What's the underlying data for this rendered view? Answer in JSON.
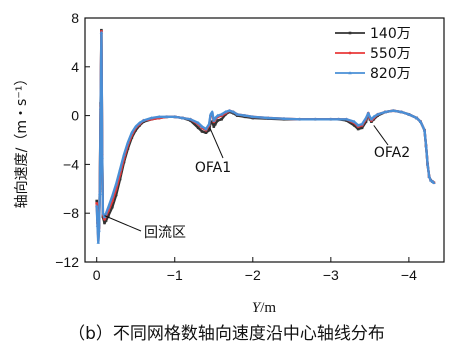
{
  "caption": "（b）不同网格数轴向速度沿中心轴线分布",
  "chart_data": {
    "type": "line",
    "title": "",
    "xlabel": "Y/m",
    "ylabel": "轴向速度/（m・s⁻¹）",
    "xlim": [
      0.15,
      -4.45
    ],
    "ylim": [
      -12,
      8
    ],
    "x_ticks": [
      0,
      -1,
      -2,
      -3,
      -4
    ],
    "x_tick_labels": [
      "0",
      "−1",
      "−2",
      "−3",
      "−4"
    ],
    "y_ticks": [
      8,
      4,
      0,
      -4,
      -8,
      -12
    ],
    "y_tick_labels": [
      "8",
      "4",
      "0",
      "−4",
      "−8",
      "−12"
    ],
    "grid": false,
    "legend_position": "top-right",
    "x": [
      0,
      -0.01,
      -0.02,
      -0.03,
      -0.04,
      -0.05,
      -0.06,
      -0.07,
      -0.08,
      -0.1,
      -0.12,
      -0.15,
      -0.2,
      -0.25,
      -0.3,
      -0.35,
      -0.4,
      -0.45,
      -0.5,
      -0.55,
      -0.6,
      -0.7,
      -0.8,
      -0.9,
      -1.0,
      -1.1,
      -1.2,
      -1.3,
      -1.35,
      -1.4,
      -1.44,
      -1.46,
      -1.48,
      -1.5,
      -1.52,
      -1.55,
      -1.6,
      -1.65,
      -1.7,
      -1.75,
      -1.8,
      -1.9,
      -2.0,
      -2.2,
      -2.4,
      -2.6,
      -2.8,
      -3.0,
      -3.1,
      -3.2,
      -3.3,
      -3.35,
      -3.4,
      -3.45,
      -3.48,
      -3.5,
      -3.52,
      -3.55,
      -3.6,
      -3.7,
      -3.8,
      -3.9,
      -4.0,
      -4.1,
      -4.15,
      -4.2,
      -4.22,
      -4.24,
      -4.26,
      -4.28,
      -4.3,
      -4.32
    ],
    "series": [
      {
        "name": "140万",
        "color": "#333333",
        "marker": "square",
        "values": [
          -7,
          -8.5,
          -10,
          -9,
          -6,
          1,
          7,
          -3,
          -8.3,
          -8.8,
          -8.6,
          -8.2,
          -7.5,
          -6.5,
          -5.2,
          -3.8,
          -2.7,
          -1.8,
          -1.2,
          -0.8,
          -0.5,
          -0.3,
          -0.2,
          -0.1,
          -0.1,
          -0.2,
          -0.4,
          -1.0,
          -1.3,
          -1.4,
          -1.2,
          -0.6,
          -0.5,
          -0.9,
          -0.7,
          -0.4,
          -0.3,
          0.1,
          0.3,
          0.2,
          0.0,
          -0.1,
          -0.2,
          -0.25,
          -0.3,
          -0.3,
          -0.3,
          -0.3,
          -0.3,
          -0.4,
          -0.8,
          -1.1,
          -1.0,
          -0.5,
          0.1,
          -0.3,
          -0.5,
          -0.3,
          0.0,
          0.3,
          0.4,
          0.3,
          0.1,
          -0.2,
          -0.5,
          -1.2,
          -2.5,
          -4.0,
          -5.0,
          -5.3,
          -5.4,
          -5.5
        ]
      },
      {
        "name": "550万",
        "color": "#e8393a",
        "marker": "circle",
        "values": [
          -7.2,
          -8.8,
          -10.2,
          -9.2,
          -6.2,
          0.8,
          6.9,
          -3.2,
          -8.1,
          -8.5,
          -8.2,
          -7.8,
          -7.0,
          -6.0,
          -4.8,
          -3.5,
          -2.4,
          -1.6,
          -1.0,
          -0.7,
          -0.4,
          -0.3,
          -0.2,
          -0.1,
          -0.1,
          -0.2,
          -0.3,
          -0.7,
          -1.0,
          -1.2,
          -0.8,
          0.0,
          0.2,
          -0.5,
          -0.3,
          -0.1,
          0.0,
          0.2,
          0.4,
          0.3,
          0.1,
          0.0,
          -0.1,
          -0.2,
          -0.25,
          -0.3,
          -0.3,
          -0.3,
          -0.3,
          -0.3,
          -0.6,
          -0.9,
          -0.8,
          -0.3,
          0.2,
          -0.2,
          -0.4,
          -0.2,
          0.1,
          0.3,
          0.4,
          0.3,
          0.1,
          -0.2,
          -0.5,
          -1.2,
          -2.5,
          -4.0,
          -5.0,
          -5.3,
          -5.4,
          -5.5
        ]
      },
      {
        "name": "820万",
        "color": "#4a8fd6",
        "marker": "triangle",
        "values": [
          -7.4,
          -9.0,
          -10.4,
          -9.4,
          -6.4,
          0.6,
          6.8,
          -3.4,
          -8.0,
          -8.3,
          -8.0,
          -7.5,
          -6.6,
          -5.6,
          -4.4,
          -3.2,
          -2.2,
          -1.4,
          -0.9,
          -0.6,
          -0.4,
          -0.2,
          -0.1,
          -0.1,
          -0.1,
          -0.2,
          -0.3,
          -0.6,
          -0.9,
          -1.1,
          -0.7,
          0.1,
          0.3,
          -0.4,
          -0.2,
          0.0,
          0.1,
          0.3,
          0.4,
          0.3,
          0.1,
          0.0,
          -0.1,
          -0.2,
          -0.25,
          -0.3,
          -0.3,
          -0.3,
          -0.3,
          -0.3,
          -0.5,
          -0.8,
          -0.7,
          -0.2,
          0.2,
          -0.1,
          -0.3,
          -0.1,
          0.1,
          0.3,
          0.4,
          0.3,
          0.1,
          -0.2,
          -0.5,
          -1.2,
          -2.5,
          -4.0,
          -5.0,
          -5.3,
          -5.4,
          -5.5
        ]
      }
    ],
    "annotations": [
      {
        "text": "OFA1",
        "x": -1.45,
        "y": -1.0
      },
      {
        "text": "OFA2",
        "x": -3.55,
        "y": -0.8
      },
      {
        "text": "回流区",
        "x": -0.1,
        "y": -8.2
      }
    ]
  }
}
